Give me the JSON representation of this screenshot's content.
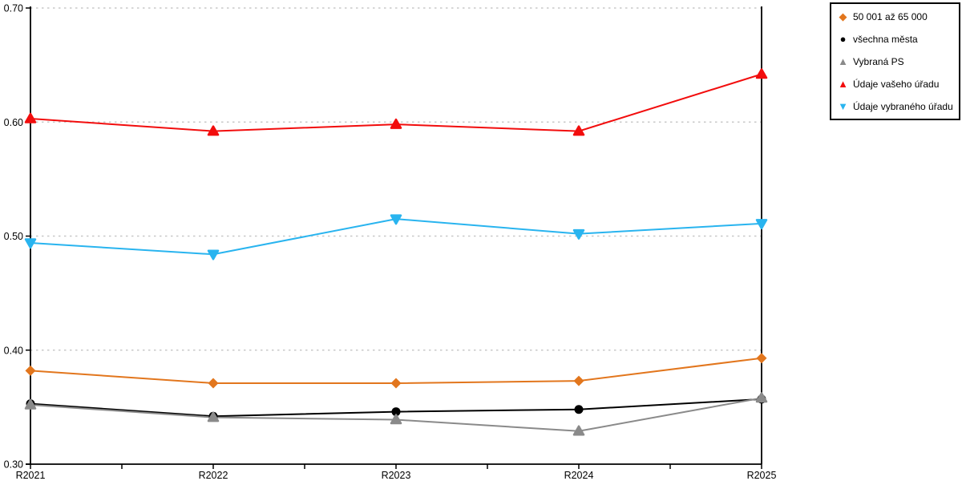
{
  "chart_data": {
    "type": "line",
    "categories": [
      "R2021",
      "R2022",
      "R2023",
      "R2024",
      "R2025"
    ],
    "series": [
      {
        "name": "50 001 až 65 000",
        "marker": "diamond",
        "color": "#e2761d",
        "values": [
          0.382,
          0.371,
          0.371,
          0.373,
          0.393
        ]
      },
      {
        "name": "všechna města",
        "marker": "circle",
        "color": "#000000",
        "values": [
          0.353,
          0.342,
          0.346,
          0.348,
          0.357
        ]
      },
      {
        "name": "Vybraná PS",
        "marker": "triangle-up",
        "color": "#8a8a8a",
        "values": [
          0.352,
          0.341,
          0.339,
          0.329,
          0.358
        ]
      },
      {
        "name": "Údaje vašeho úřadu",
        "marker": "triangle-up",
        "color": "#f20d0d",
        "values": [
          0.603,
          0.592,
          0.598,
          0.592,
          0.642
        ]
      },
      {
        "name": "Údaje vybraného úřadu",
        "marker": "triangle-down",
        "color": "#29b4ef",
        "values": [
          0.494,
          0.484,
          0.515,
          0.502,
          0.511
        ]
      }
    ],
    "title": "",
    "xlabel": "",
    "ylabel": "",
    "ylim": [
      0.3,
      0.7
    ],
    "yticks": [
      0.3,
      0.4,
      0.5,
      0.6,
      0.7
    ],
    "ytick_labels": [
      "0.30",
      "0.40",
      "0.50",
      "0.60",
      "0.70"
    ],
    "grid": "horizontal-dotted",
    "gridline_color": "#c8c8c8",
    "axis_color": "#000000",
    "legend_position": "top-right"
  }
}
